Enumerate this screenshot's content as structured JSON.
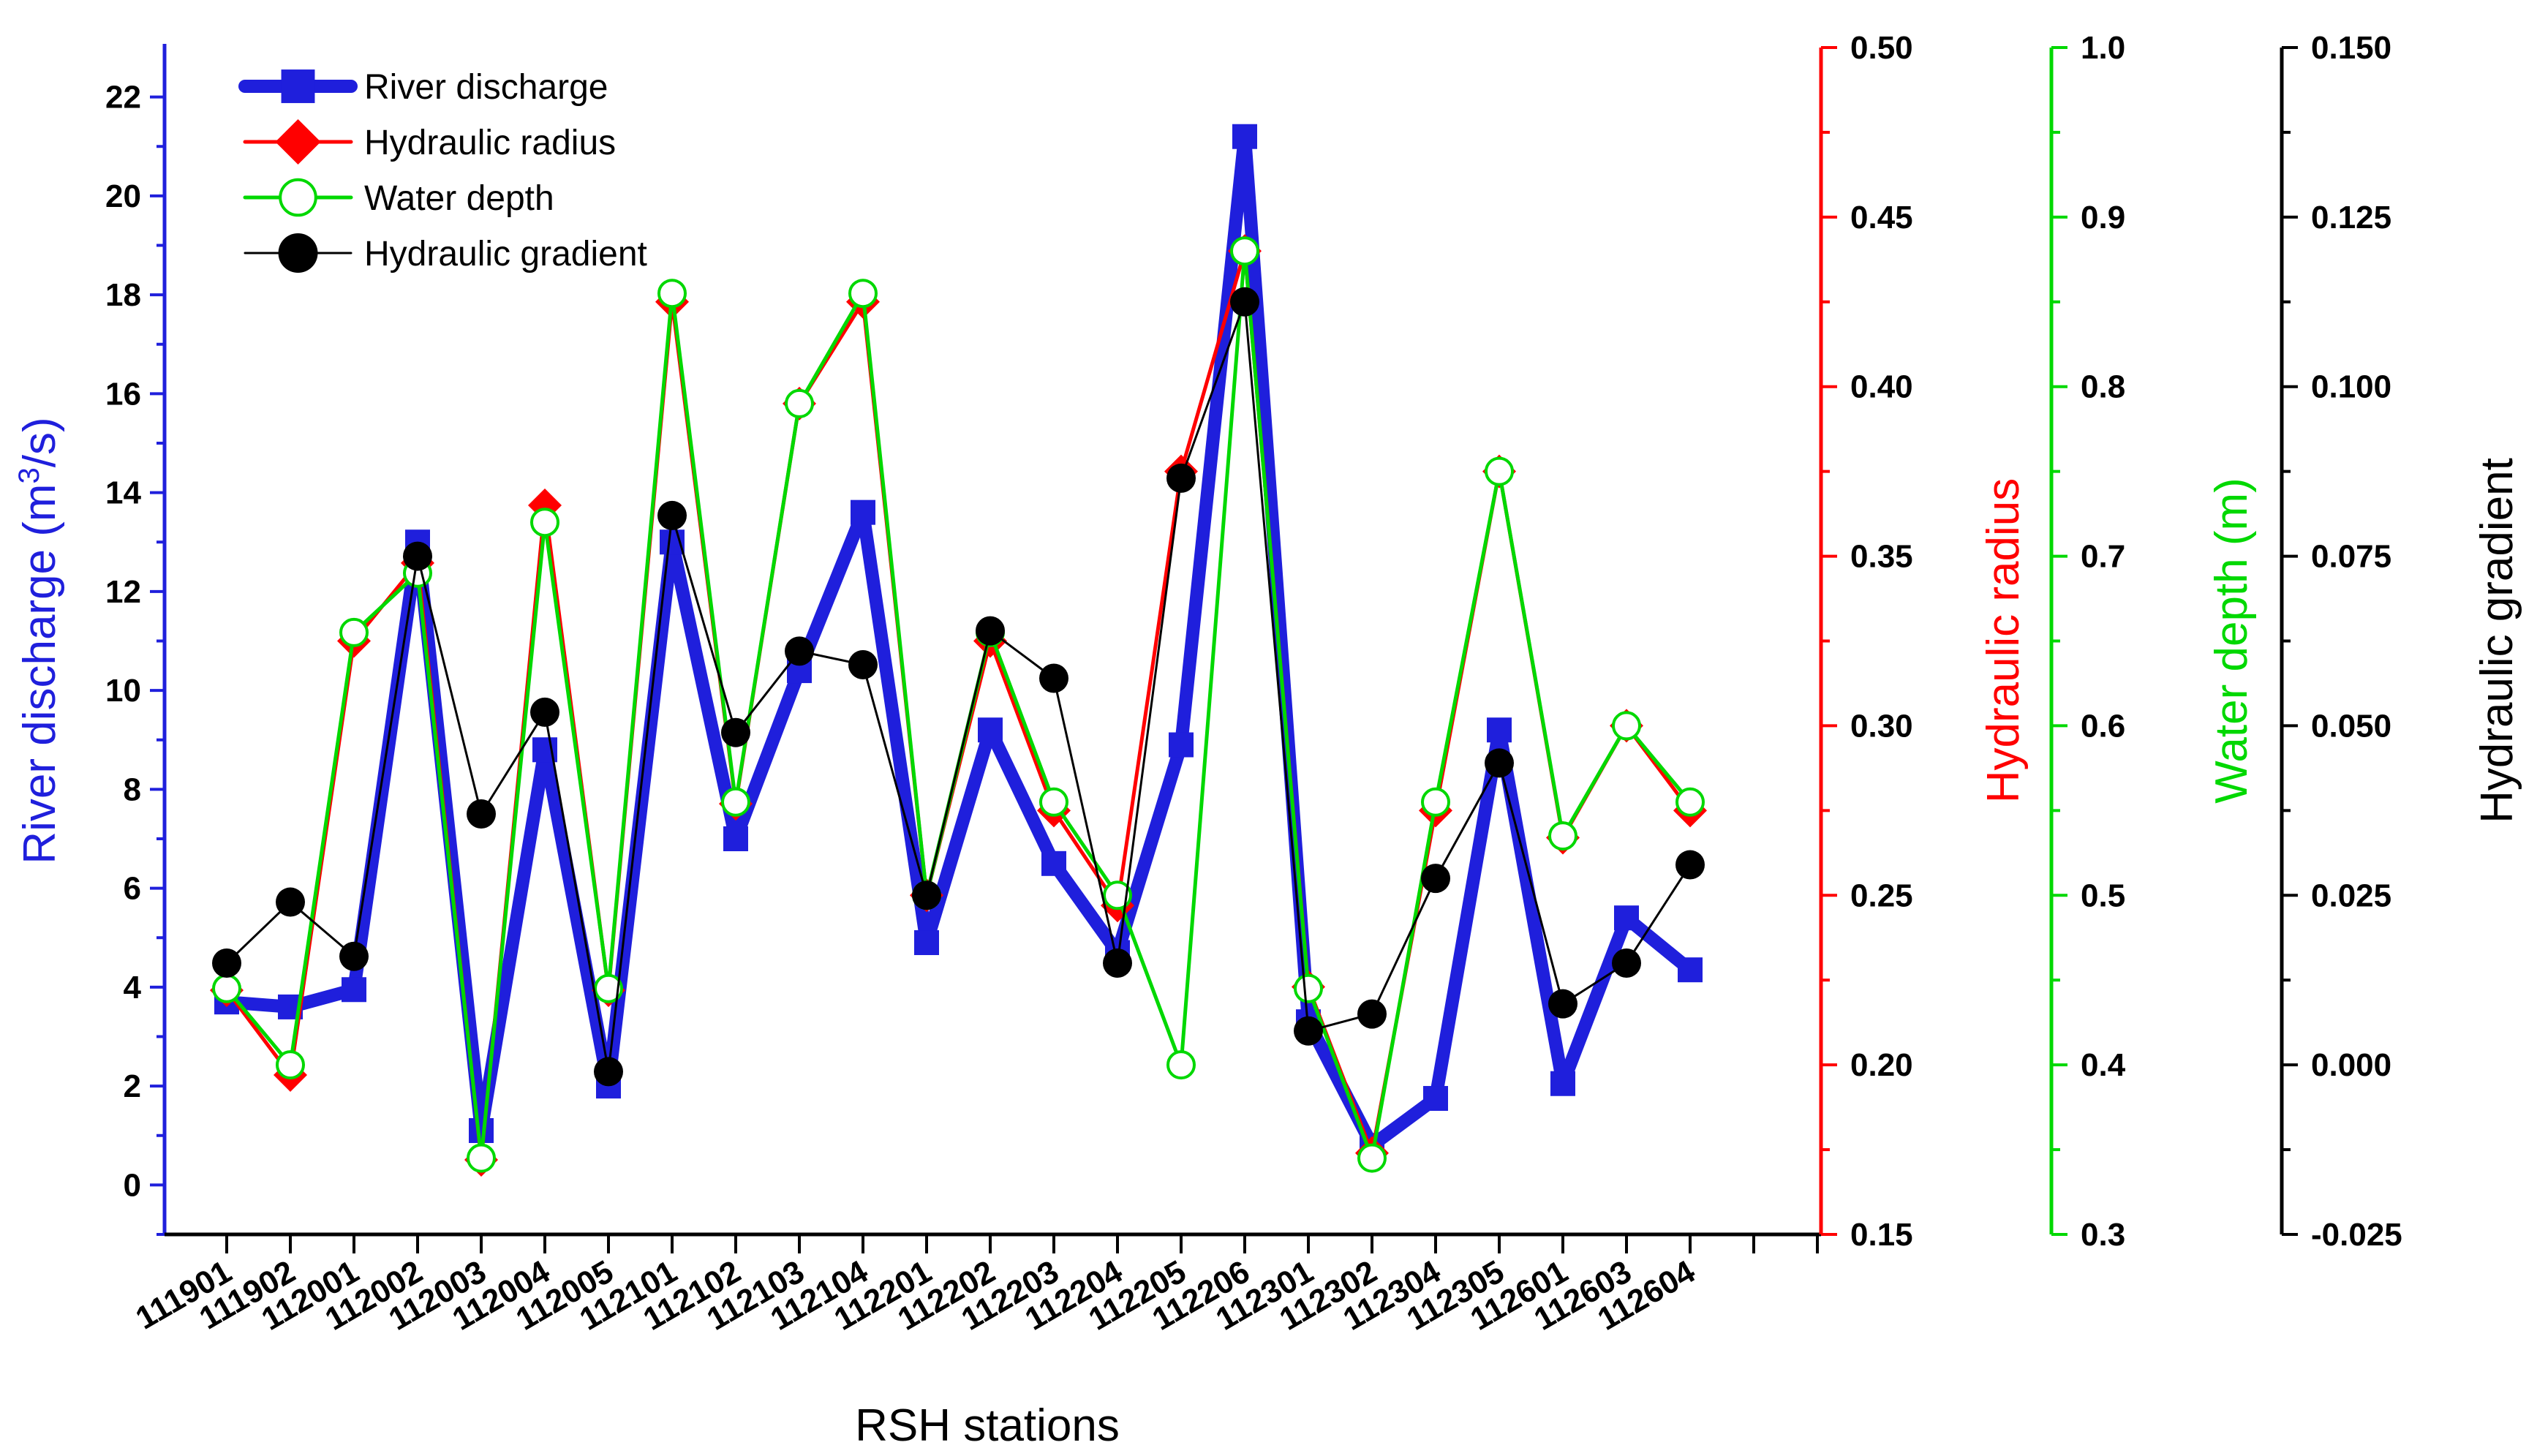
{
  "chart_data": {
    "type": "line",
    "xlabel": "RSH stations",
    "categories": [
      "111901",
      "111902",
      "112001",
      "112002",
      "112003",
      "112004",
      "112005",
      "112101",
      "112102",
      "112103",
      "112104",
      "112201",
      "112202",
      "112203",
      "112204",
      "112205",
      "112206",
      "112301",
      "112302",
      "112304",
      "112305",
      "112601",
      "112603",
      "112604"
    ],
    "axes": [
      {
        "id": "discharge",
        "label": "River discharge (m³/s)",
        "label_main": "River discharge (m",
        "label_sup": "3",
        "label_tail": "/s)",
        "color": "#1f1fdc",
        "ylim": [
          -1,
          23
        ],
        "ticks": [
          "0",
          "2",
          "4",
          "6",
          "8",
          "10",
          "12",
          "14",
          "16",
          "18",
          "20",
          "22"
        ],
        "tick_values": [
          0,
          2,
          4,
          6,
          8,
          10,
          12,
          14,
          16,
          18,
          20,
          22
        ]
      },
      {
        "id": "radius",
        "label": "Hydraulic radius",
        "color": "#ff0000",
        "ylim": [
          0.15,
          0.5
        ],
        "ticks": [
          "0.15",
          "0.20",
          "0.25",
          "0.30",
          "0.35",
          "0.40",
          "0.45",
          "0.50"
        ],
        "tick_values": [
          0.15,
          0.2,
          0.25,
          0.3,
          0.35,
          0.4,
          0.45,
          0.5
        ]
      },
      {
        "id": "depth",
        "label": "Water depth (m)",
        "color": "#00d800",
        "ylim": [
          0.3,
          1.0
        ],
        "ticks": [
          "0.3",
          "0.4",
          "0.5",
          "0.6",
          "0.7",
          "0.8",
          "0.9",
          "1.0"
        ],
        "tick_values": [
          0.3,
          0.4,
          0.5,
          0.6,
          0.7,
          0.8,
          0.9,
          1.0
        ]
      },
      {
        "id": "gradient",
        "label": "Hydraulic gradient",
        "color": "#000000",
        "ylim": [
          -0.025,
          0.15
        ],
        "ticks": [
          "-0.025",
          "0.000",
          "0.025",
          "0.050",
          "0.075",
          "0.100",
          "0.125",
          "0.150"
        ],
        "tick_values": [
          -0.025,
          0,
          0.025,
          0.05,
          0.075,
          0.1,
          0.125,
          0.15
        ]
      }
    ],
    "series": [
      {
        "name": "River discharge",
        "axis": "discharge",
        "color": "#1f1fdc",
        "marker": "square",
        "values": [
          3.7,
          3.6,
          3.95,
          13.0,
          1.1,
          8.8,
          2.0,
          13.0,
          7.0,
          10.4,
          13.6,
          4.9,
          9.2,
          6.5,
          4.7,
          8.9,
          21.2,
          3.3,
          0.8,
          1.75,
          9.2,
          2.05,
          5.4,
          4.35
        ]
      },
      {
        "name": "Hydraulic radius",
        "axis": "radius",
        "color": "#ff0000",
        "marker": "diamond",
        "values": [
          0.222,
          0.197,
          0.325,
          0.348,
          0.172,
          0.365,
          0.222,
          0.425,
          0.277,
          0.395,
          0.425,
          0.25,
          0.325,
          0.275,
          0.247,
          0.375,
          0.44,
          0.223,
          0.174,
          0.275,
          0.375,
          0.267,
          0.3,
          0.275
        ]
      },
      {
        "name": "Water depth",
        "axis": "depth",
        "color": "#00d800",
        "marker": "circle-open",
        "values": [
          0.445,
          0.4,
          0.655,
          0.69,
          0.345,
          0.72,
          0.445,
          0.855,
          0.555,
          0.79,
          0.855,
          0.5,
          0.655,
          0.555,
          0.5,
          0.4,
          0.88,
          0.445,
          0.345,
          0.555,
          0.75,
          0.535,
          0.6,
          0.555
        ]
      },
      {
        "name": "Hydraulic gradient",
        "axis": "gradient",
        "color": "#000000",
        "marker": "circle",
        "values": [
          0.015,
          0.024,
          0.016,
          0.075,
          0.037,
          0.052,
          -0.001,
          0.081,
          0.049,
          0.061,
          0.059,
          0.025,
          0.064,
          0.057,
          0.015,
          0.0865,
          0.1125,
          0.005,
          0.0075,
          0.0275,
          0.0445,
          0.009,
          0.015,
          0.0295
        ]
      }
    ],
    "legend": {
      "position": "top-left",
      "entries": [
        "River discharge",
        "Hydraulic radius",
        "Water depth",
        "Hydraulic gradient"
      ]
    }
  }
}
